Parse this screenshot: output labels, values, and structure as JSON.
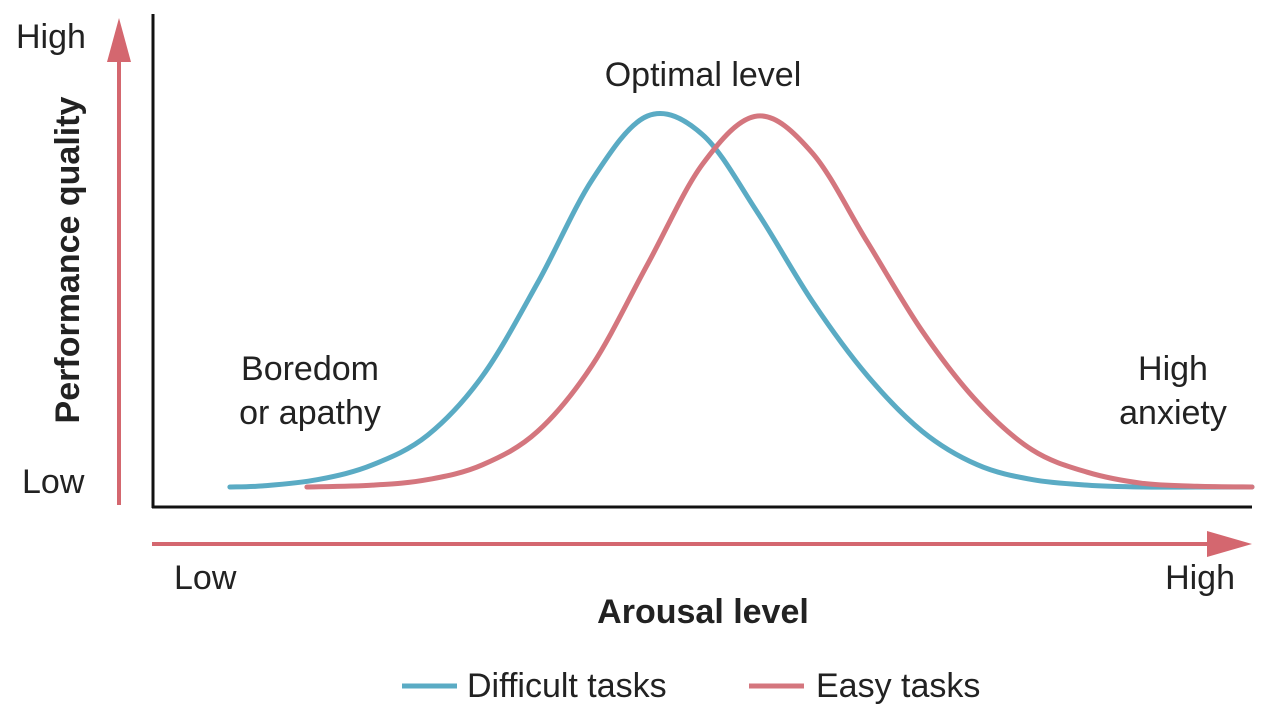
{
  "chart_data": {
    "type": "line",
    "xlabel": "Arousal level",
    "ylabel": "Performance quality",
    "x_low_label": "Low",
    "x_high_label": "High",
    "y_low_label": "Low",
    "y_high_label": "High",
    "xlim": [
      0,
      1
    ],
    "ylim": [
      0,
      1
    ],
    "grid": false,
    "legend": "bottom",
    "annotations": {
      "left": [
        "Boredom",
        "or apathy"
      ],
      "peak": "Optimal level",
      "right": [
        "High",
        "anxiety"
      ]
    },
    "series": [
      {
        "name": "Difficult tasks",
        "color": "#5aabc4",
        "x": [
          0.07,
          0.1,
          0.15,
          0.2,
          0.25,
          0.3,
          0.35,
          0.4,
          0.45,
          0.5,
          0.55,
          0.6,
          0.65,
          0.7,
          0.75,
          0.8,
          0.85,
          0.9,
          0.95,
          1.0
        ],
        "y": [
          0.0,
          0.003,
          0.02,
          0.06,
          0.14,
          0.3,
          0.55,
          0.83,
          1.0,
          0.95,
          0.74,
          0.5,
          0.3,
          0.15,
          0.06,
          0.02,
          0.005,
          0.0,
          0.0,
          0.0
        ]
      },
      {
        "name": "Easy tasks",
        "color": "#d4767e",
        "x": [
          0.14,
          0.2,
          0.25,
          0.3,
          0.35,
          0.4,
          0.45,
          0.5,
          0.55,
          0.6,
          0.65,
          0.7,
          0.75,
          0.8,
          0.85,
          0.9,
          0.95,
          1.0
        ],
        "y": [
          0.0,
          0.005,
          0.02,
          0.06,
          0.15,
          0.33,
          0.6,
          0.87,
          1.0,
          0.9,
          0.66,
          0.42,
          0.23,
          0.1,
          0.04,
          0.01,
          0.002,
          0.0
        ]
      }
    ]
  }
}
